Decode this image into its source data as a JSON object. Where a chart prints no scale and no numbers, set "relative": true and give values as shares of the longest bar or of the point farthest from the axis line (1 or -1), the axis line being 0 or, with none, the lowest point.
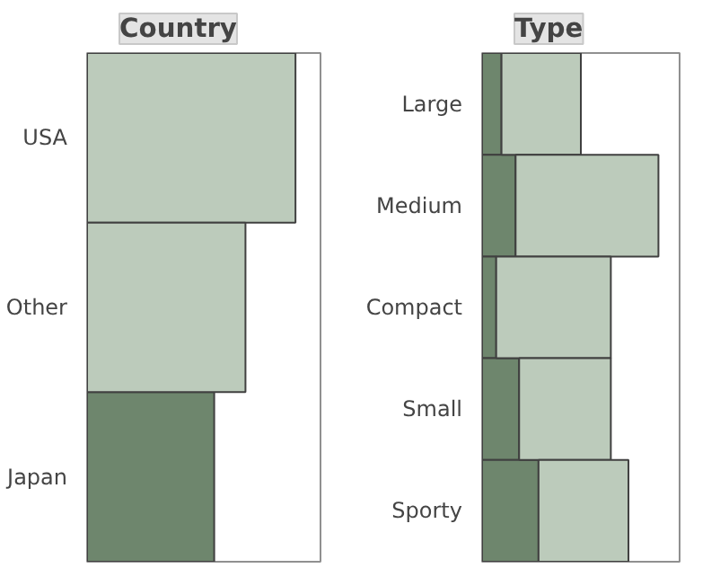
{
  "chart_data": [
    {
      "type": "bar",
      "title": "Country",
      "orientation": "horizontal",
      "stacked": true,
      "relative": true,
      "categories": [
        "USA",
        "Other",
        "Japan"
      ],
      "series": [
        {
          "color": "#6e866d",
          "values": [
            0,
            0,
            0.61
          ]
        },
        {
          "color": "#bccbbb",
          "values": [
            1,
            0.76,
            0
          ]
        }
      ]
    },
    {
      "type": "bar",
      "title": "Type",
      "orientation": "horizontal",
      "stacked": true,
      "relative": true,
      "categories": [
        "Large",
        "Medium",
        "Compact",
        "Small",
        "Sporty"
      ],
      "series": [
        {
          "color": "#6e866d",
          "values": [
            0.11,
            0.19,
            0.08,
            0.21,
            0.32
          ]
        },
        {
          "color": "#bccbbb",
          "values": [
            0.45,
            0.81,
            0.65,
            0.52,
            0.51
          ]
        }
      ]
    }
  ]
}
